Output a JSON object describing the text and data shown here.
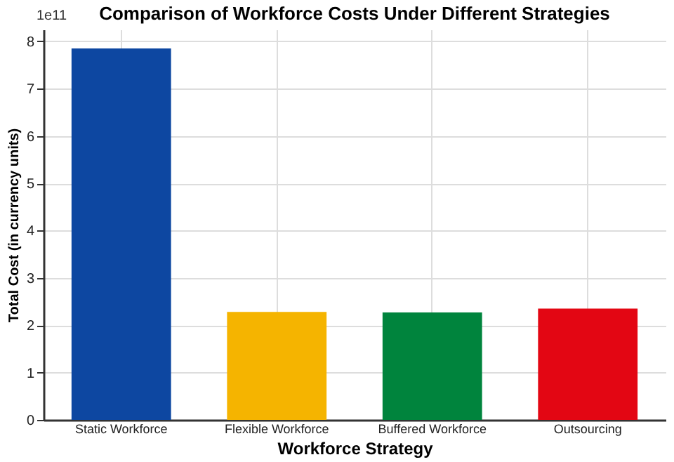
{
  "chart_data": {
    "type": "bar",
    "title": "Comparison of Workforce Costs Under Different Strategies",
    "xlabel": "Workforce Strategy",
    "ylabel": "Total Cost (in currency units)",
    "categories": [
      "Static Workforce",
      "Flexible Workforce",
      "Buffered Workforce",
      "Outsourcing"
    ],
    "values": [
      7.85,
      2.28,
      2.27,
      2.35
    ],
    "colors": [
      "#0d47a1",
      "#f5b400",
      "#00843d",
      "#e30613"
    ],
    "ylim": [
      0,
      8.25
    ],
    "yticks": [
      0,
      1,
      2,
      3,
      4,
      5,
      6,
      7,
      8
    ],
    "annotations": [
      "1e11"
    ],
    "grid": true
  }
}
